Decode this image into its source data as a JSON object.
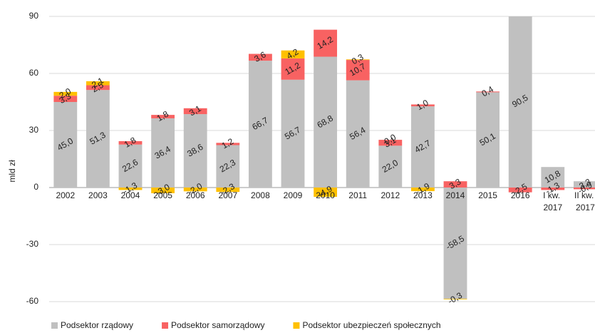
{
  "chart_data": {
    "type": "stacked_bar",
    "y_label": "mld zł",
    "categories": [
      "2002",
      "2003",
      "2004",
      "2005",
      "2006",
      "2007",
      "2008",
      "2009",
      "2010",
      "2011",
      "2012",
      "2013",
      "2014",
      "2015",
      "2016",
      "I kw. 2017",
      "II kw. 2017"
    ],
    "ylim": [
      -60,
      90
    ],
    "yticks": [
      -60,
      -30,
      0,
      30,
      60,
      90
    ],
    "grid": true,
    "legend": "bottom",
    "series": [
      {
        "name": "Podsektor rządowy",
        "color": "#c0c0c0",
        "values": [
          45.0,
          51.3,
          22.6,
          36.4,
          38.6,
          22.3,
          66.7,
          56.7,
          68.8,
          56.4,
          22.0,
          42.7,
          -58.5,
          50.1,
          90.5,
          10.8,
          3.3
        ],
        "value_labels": [
          "45,0",
          "51,3",
          "22,6",
          "36,4",
          "38,6",
          "22,3",
          "66,7",
          "56,7",
          "68,8",
          "56,4",
          "22,0",
          "42,7",
          "-58,5",
          "50,1",
          "90,5",
          "10,8",
          "3,3"
        ]
      },
      {
        "name": "Podsektor samorządowy",
        "color": "#f86262",
        "values": [
          3.3,
          2.5,
          1.8,
          1.8,
          3.1,
          1.2,
          3.6,
          11.2,
          14.2,
          10.7,
          3.1,
          1.0,
          3.3,
          0.4,
          -2.5,
          -1.3,
          -0.9
        ],
        "value_labels": [
          "3,3",
          "2,5",
          "1,8",
          "1,8",
          "3,1",
          "1,2",
          "3,6",
          "11,2",
          "14,2",
          "10,7",
          "3,1",
          "1,0",
          "3,3",
          "0,4",
          "-2,5",
          "-1,3",
          "-0,9"
        ]
      },
      {
        "name": "Podsektor ubezpieczeń społecznych",
        "color": "#ffc000",
        "values": [
          2.0,
          2.1,
          -1.3,
          -3.0,
          -2.0,
          -2.3,
          null,
          4.2,
          -4.9,
          0.3,
          0.0,
          -1.9,
          -0.3,
          null,
          null,
          null,
          null
        ],
        "value_labels": [
          "2,0",
          "2,1",
          "-1,3",
          "-3,0",
          "-2,0",
          "-2,3",
          null,
          "4,2",
          "-4,9",
          "0,3",
          "0,0",
          "-1,9",
          "-0,3",
          null,
          null,
          null,
          null
        ]
      }
    ]
  }
}
